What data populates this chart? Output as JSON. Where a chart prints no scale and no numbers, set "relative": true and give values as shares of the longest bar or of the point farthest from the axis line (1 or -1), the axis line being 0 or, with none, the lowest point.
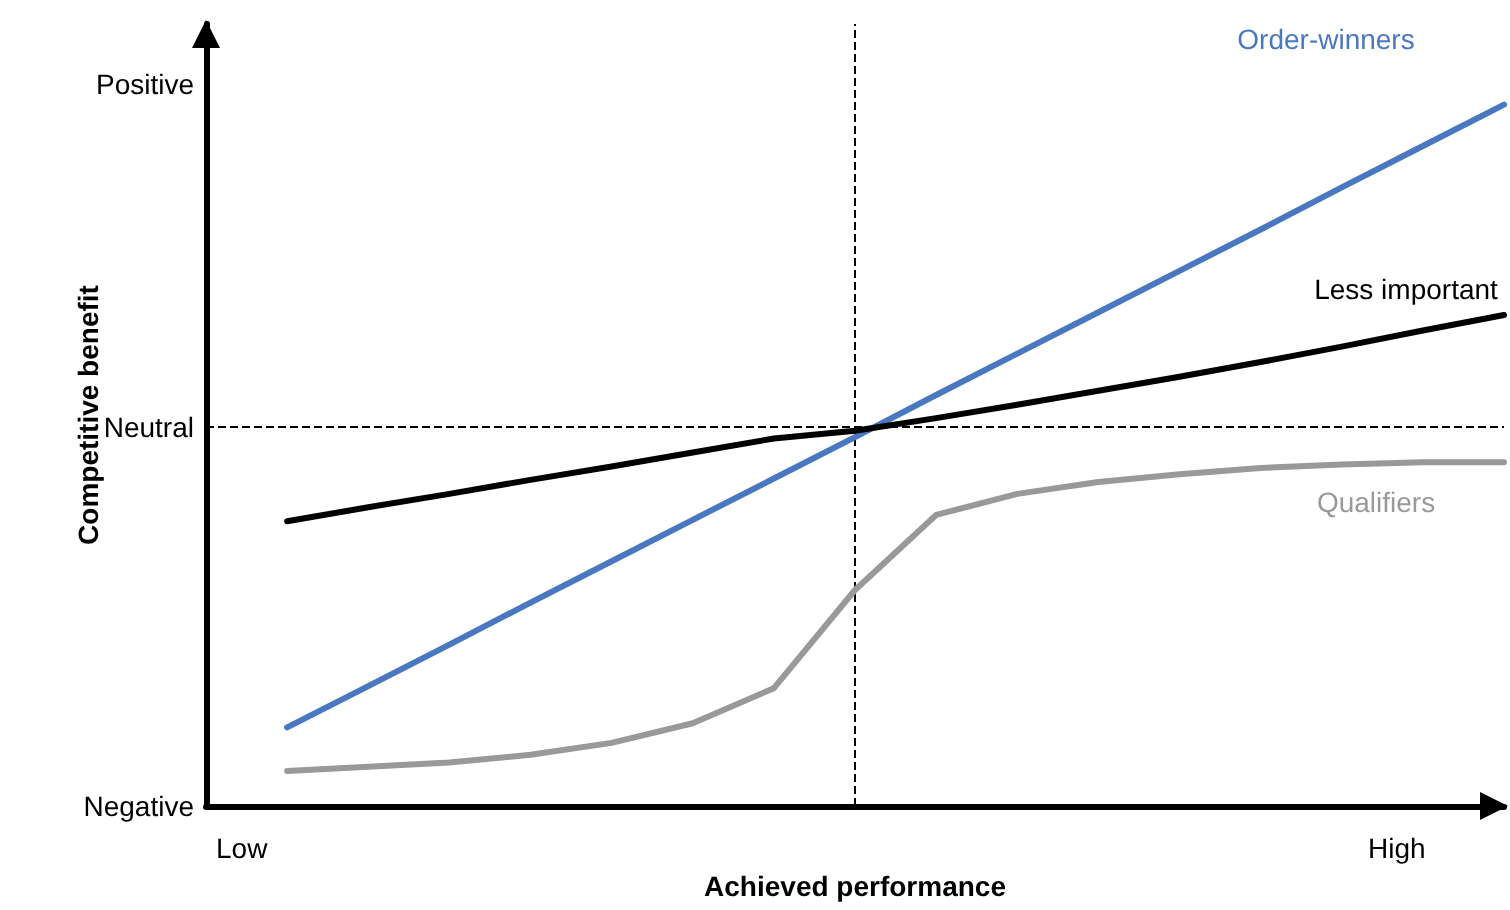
{
  "chart_data": {
    "type": "line",
    "xlabel": "Achieved performance",
    "ylabel": "Competitive benefit",
    "relative": true,
    "categories": [
      null,
      null,
      null,
      null,
      null,
      null,
      null,
      null,
      null,
      null,
      null,
      null,
      null,
      null,
      null,
      null,
      null
    ],
    "annotations": [
      "Positive",
      "Negative",
      "Low",
      "High"
    ],
    "series": [
      {
        "name": "Order-winners",
        "color": "#4a78c0",
        "values": [
          null,
          0.112,
          0.171,
          0.23,
          0.29,
          0.349,
          0.408,
          0.467,
          0.526,
          0.586,
          0.645,
          0.704,
          0.763,
          0.822,
          0.882,
          0.941,
          1
        ]
      },
      {
        "name": "Less important",
        "color": "#000000",
        "values": [
          null,
          0.406,
          0.426,
          0.445,
          0.465,
          0.484,
          0.504,
          0.524,
          0.535,
          0.553,
          0.572,
          0.592,
          0.612,
          0.633,
          0.655,
          0.678,
          0.7
        ]
      },
      {
        "name": "Qualifiers",
        "color": "#999999",
        "values": [
          null,
          0.05,
          0.056,
          0.062,
          0.073,
          0.09,
          0.118,
          0.168,
          0.308,
          0.415,
          0.445,
          0.462,
          0.473,
          0.482,
          0.487,
          0.49,
          0.49
        ]
      }
    ],
    "ref_lines": [
      {
        "axis": "y",
        "value": 0.54,
        "label": "Neutral",
        "color": "#000000",
        "line_style": "dashed"
      }
    ],
    "marker": "none",
    "line_style": "solid",
    "legend": false
  }
}
